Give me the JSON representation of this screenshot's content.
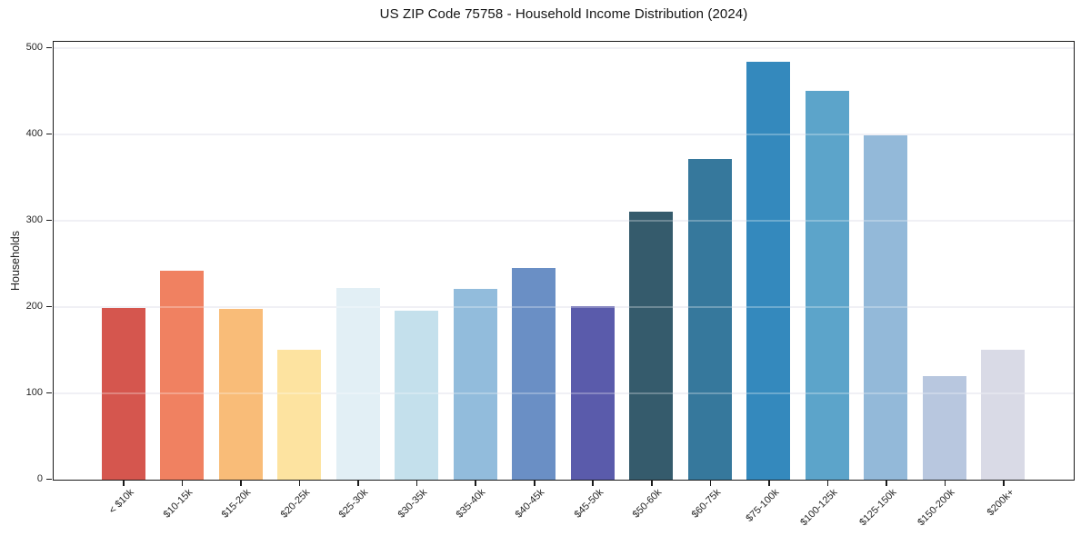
{
  "chart_data": {
    "type": "bar",
    "title": "US ZIP Code 75758 - Household Income Distribution (2024)",
    "xlabel": "",
    "ylabel": "Households",
    "categories": [
      "< $10k",
      "$10-15k",
      "$15-20k",
      "$20-25k",
      "$25-30k",
      "$30-35k",
      "$35-40k",
      "$40-45k",
      "$45-50k",
      "$50-60k",
      "$60-75k",
      "$75-100k",
      "$100-125k",
      "$125-150k",
      "$150-200k",
      "$200k+"
    ],
    "values": [
      199,
      242,
      198,
      150,
      222,
      196,
      221,
      245,
      201,
      311,
      371,
      484,
      450,
      399,
      120,
      150
    ],
    "bar_colors": [
      "#d5564e",
      "#f08161",
      "#f9bc78",
      "#fde3a0",
      "#e2eff5",
      "#c4e0ec",
      "#92bcdc",
      "#6a8fc5",
      "#5a5bab",
      "#355b6c",
      "#36789c",
      "#3489bd",
      "#5ca4ca",
      "#93b9d9",
      "#b8c7df",
      "#d9dae6"
    ],
    "yticks": [
      0,
      100,
      200,
      300,
      400,
      500
    ],
    "ylim": [
      0,
      506
    ],
    "grid": "horizontal",
    "gridline_color": "#ebebf2",
    "spine_color": "#1a1a1a",
    "legend": "none"
  }
}
